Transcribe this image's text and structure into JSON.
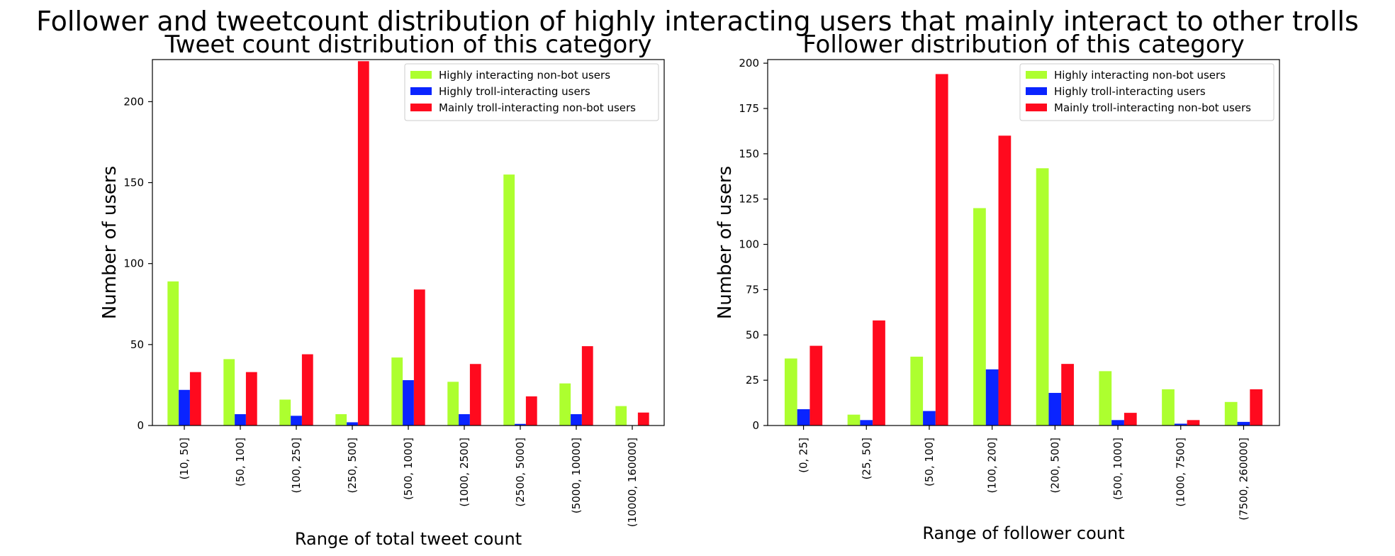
{
  "suptitle": "Follower and tweetcount distribution of highly interacting users that mainly interact to other trolls",
  "colors": {
    "series1": "#adff2f",
    "series2": "#0a24ff",
    "series3": "#ff0a1e"
  },
  "chart_data": [
    {
      "type": "bar",
      "title": "Tweet count distribution of this category",
      "xlabel": "Range of total tweet count",
      "ylabel": "Number of users",
      "ylim": [
        0,
        226
      ],
      "yticks": [
        0,
        50,
        100,
        150,
        200
      ],
      "legend_position": "top-right",
      "categories": [
        "(10, 50]",
        "(50, 100]",
        "(100, 250]",
        "(250, 500]",
        "(500, 1000]",
        "(1000, 2500]",
        "(2500, 5000]",
        "(5000, 10000]",
        "(10000, 160000]"
      ],
      "series": [
        {
          "name": "Highly interacting non-bot users",
          "values": [
            89,
            41,
            16,
            7,
            42,
            27,
            155,
            26,
            12
          ]
        },
        {
          "name": "Highly troll-interacting users",
          "values": [
            22,
            7,
            6,
            2,
            28,
            7,
            1,
            7,
            0
          ]
        },
        {
          "name": "Mainly troll-interacting non-bot users",
          "values": [
            33,
            33,
            44,
            225,
            84,
            38,
            18,
            49,
            8
          ]
        }
      ]
    },
    {
      "type": "bar",
      "title": "Follower distribution of this category",
      "xlabel": "Range of follower count",
      "ylabel": "Number of users",
      "ylim": [
        0,
        202
      ],
      "yticks": [
        0,
        25,
        50,
        75,
        100,
        125,
        150,
        175,
        200
      ],
      "legend_position": "top-right",
      "categories": [
        "(0, 25]",
        "(25, 50]",
        "(50, 100]",
        "(100, 200]",
        "(200, 500]",
        "(500, 1000]",
        "(1000, 7500]",
        "(7500, 260000]"
      ],
      "series": [
        {
          "name": "Highly interacting non-bot users",
          "values": [
            37,
            6,
            38,
            120,
            142,
            30,
            20,
            13
          ]
        },
        {
          "name": "Highly troll-interacting users",
          "values": [
            9,
            3,
            8,
            31,
            18,
            3,
            1,
            2
          ]
        },
        {
          "name": "Mainly troll-interacting non-bot users",
          "values": [
            44,
            58,
            194,
            160,
            34,
            7,
            3,
            20
          ]
        }
      ]
    }
  ]
}
